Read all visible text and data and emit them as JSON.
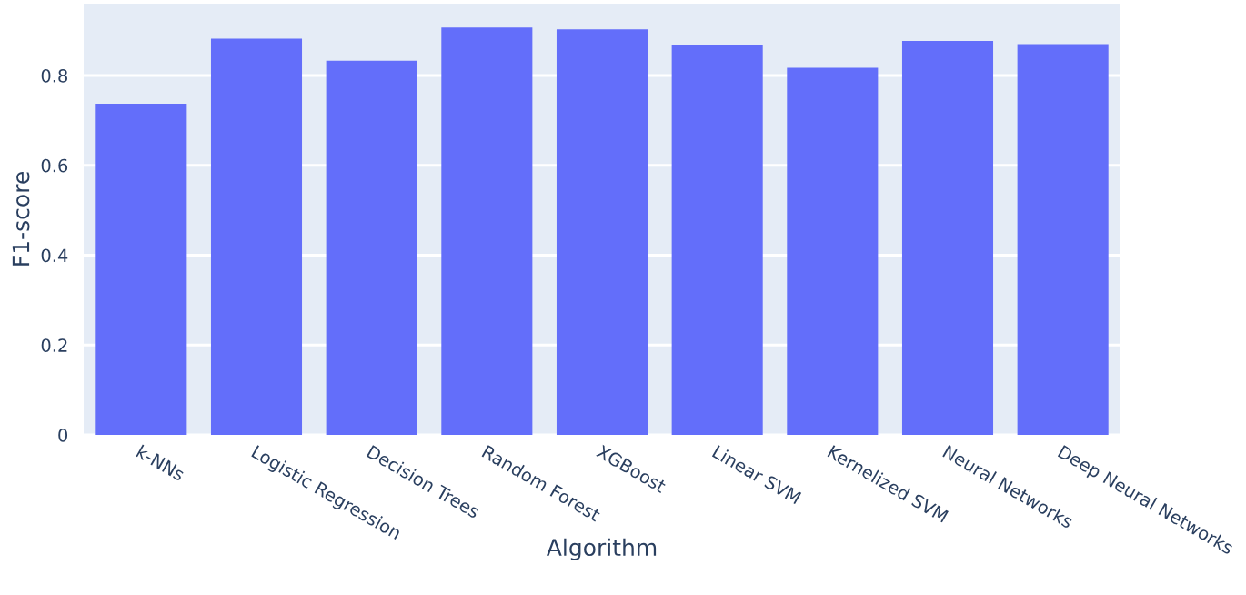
{
  "chart_data": {
    "type": "bar",
    "xlabel": "Algorithm",
    "ylabel": "F1-score",
    "categories": [
      "k-NNs",
      "Logistic Regression",
      "Decision Trees",
      "Random Forest",
      "XGBoost",
      "Linear SVM",
      "Kernelized SVM",
      "Neural Networks",
      "Deep Neural Networks"
    ],
    "values": [
      0.737,
      0.882,
      0.833,
      0.907,
      0.903,
      0.868,
      0.817,
      0.877,
      0.87
    ],
    "color": "#636efa",
    "ylim": [
      0,
      0.96
    ],
    "yticks": [
      0,
      0.2,
      0.4,
      0.6,
      0.8
    ],
    "grid": "y"
  }
}
